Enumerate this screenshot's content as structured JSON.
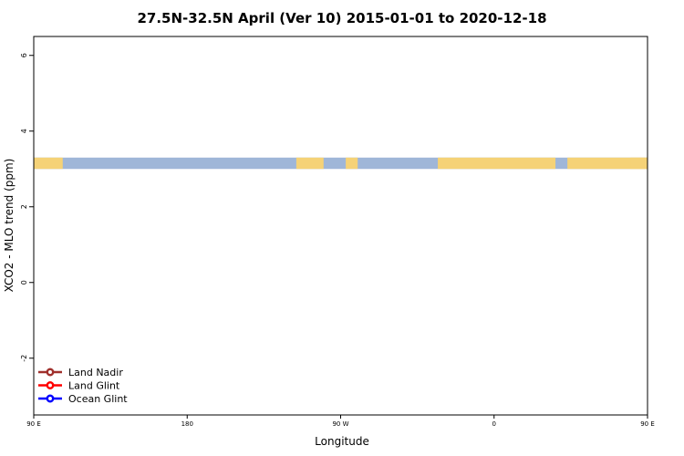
{
  "chart_data": {
    "type": "line",
    "title": "27.5N-32.5N April (Ver 10)   2015-01-01 to 2020-12-18",
    "xlabel": "Longitude",
    "ylabel": "XCO2 - MLO trend (ppm)",
    "xlim": [
      90,
      450
    ],
    "ylim": [
      -3.5,
      6.5
    ],
    "x_ticks": [
      {
        "value": 90,
        "label": "90 E"
      },
      {
        "value": 180,
        "label": "180"
      },
      {
        "value": 270,
        "label": "90 W"
      },
      {
        "value": 360,
        "label": "0"
      },
      {
        "value": 450,
        "label": "90 E"
      },
      {
        "value": 540,
        "label": "180"
      }
    ],
    "y_ticks": [
      {
        "value": -2,
        "label": "-2"
      },
      {
        "value": 0,
        "label": "0"
      },
      {
        "value": 2,
        "label": "2"
      },
      {
        "value": 4,
        "label": "4"
      },
      {
        "value": 6,
        "label": "6"
      }
    ],
    "legend_position": "bottom-left",
    "land_ocean_band": {
      "y_range": [
        3.0,
        3.3
      ],
      "ocean_color": "#9fb6d8",
      "land_color": "#f5d277",
      "land_segments": [
        [
          90,
          107
        ],
        [
          244,
          260
        ],
        [
          280,
          273
        ],
        [
          327,
          396
        ],
        [
          403,
          466
        ],
        [
          440,
          466
        ]
      ]
    },
    "series": [
      {
        "name": "Land Nadir",
        "color": "#a0302c",
        "points": []
      },
      {
        "name": "Land Glint",
        "color": "#ff0000",
        "points": []
      },
      {
        "name": "Ocean Glint",
        "color": "#0000ff",
        "points": []
      }
    ]
  }
}
